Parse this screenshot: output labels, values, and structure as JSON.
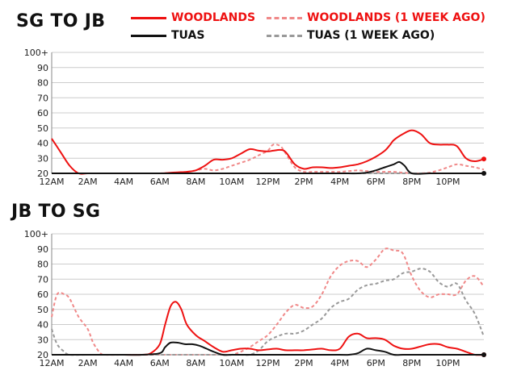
{
  "legend": {
    "woodlands": "WOODLANDS",
    "woodlands_prev": "WOODLANDS (1 WEEK AGO)",
    "tuas": "TUAS",
    "tuas_prev": "TUAS (1 WEEK AGO)"
  },
  "colors": {
    "woodlands": "#ee1111",
    "woodlands_prev": "#f08888",
    "tuas": "#111111",
    "tuas_prev": "#999999"
  },
  "chart_data": [
    {
      "type": "line",
      "title": "SG TO JB",
      "xlabel": "",
      "ylabel": "",
      "x_ticks": [
        "12AM",
        "2AM",
        "4AM",
        "6AM",
        "8AM",
        "10AM",
        "12PM",
        "2PM",
        "4PM",
        "6PM",
        "8PM",
        "10PM"
      ],
      "x_range": [
        0,
        24
      ],
      "y_ticks": [
        "20",
        "30",
        "40",
        "50",
        "60",
        "70",
        "80",
        "90",
        "100+"
      ],
      "ylim": [
        20,
        100
      ],
      "series": [
        {
          "name": "WOODLANDS",
          "style": "solid",
          "end_marker": true,
          "x": [
            0,
            0.5,
            1,
            1.5,
            2,
            3,
            4,
            5,
            6,
            6.5,
            7,
            7.5,
            8,
            8.5,
            9,
            9.5,
            10,
            10.5,
            11,
            11.5,
            12,
            12.3,
            12.7,
            13,
            13.5,
            14,
            14.5,
            15,
            15.5,
            16,
            16.5,
            17,
            17.5,
            18,
            18.5,
            18.8,
            19,
            19.5,
            20,
            20.5,
            21,
            21.5,
            22,
            22.5,
            23,
            23.5,
            24
          ],
          "y": [
            43,
            34,
            25,
            20,
            20,
            20,
            20,
            20,
            20,
            20.3,
            20.7,
            21,
            22,
            25,
            29,
            29,
            30,
            33,
            36,
            35,
            34.5,
            35,
            35.5,
            34,
            26,
            23,
            24,
            24,
            23.5,
            24,
            25,
            26,
            28,
            31,
            35,
            39,
            42,
            46,
            48.5,
            46,
            40,
            39,
            39,
            38,
            30,
            28,
            29.5
          ]
        },
        {
          "name": "WOODLANDS (1 WEEK AGO)",
          "style": "dashed",
          "end_marker": false,
          "x": [
            0,
            1,
            2,
            3,
            4,
            5,
            6,
            6.5,
            7,
            7.5,
            8,
            8.5,
            9,
            9.5,
            10,
            10.5,
            11,
            11.5,
            12,
            12.3,
            12.7,
            13,
            13.5,
            14,
            14.5,
            15,
            15.5,
            16,
            16.5,
            17,
            17.5,
            18,
            18.5,
            19,
            19.5,
            20,
            20.5,
            21,
            21.5,
            22,
            22.5,
            23,
            23.5,
            24
          ],
          "y": [
            20,
            20,
            20,
            20,
            20,
            20,
            20,
            20.2,
            20.5,
            21,
            22,
            23,
            22,
            23,
            25,
            27,
            29,
            32,
            35,
            39,
            38,
            33,
            24,
            21,
            21,
            21,
            21,
            21,
            21.5,
            22,
            21.5,
            21,
            21,
            21,
            20.5,
            20,
            20,
            20.5,
            22,
            24,
            26,
            25,
            24,
            22.5
          ]
        },
        {
          "name": "TUAS",
          "style": "solid",
          "end_marker": true,
          "x": [
            0,
            2,
            4,
            6,
            8,
            10,
            12,
            14,
            16,
            17,
            17.5,
            18,
            18.5,
            19,
            19.3,
            19.6,
            20,
            21,
            22,
            23,
            24
          ],
          "y": [
            20,
            20,
            20,
            20,
            20,
            20,
            20,
            20,
            20,
            20,
            20.5,
            22,
            24,
            26,
            27.5,
            25,
            20,
            20,
            20,
            20,
            20
          ]
        },
        {
          "name": "TUAS (1 WEEK AGO)",
          "style": "dashed",
          "end_marker": false,
          "x": [
            0,
            2,
            4,
            6,
            8,
            10,
            12,
            14,
            16,
            18,
            20,
            22,
            24
          ],
          "y": [
            20,
            20,
            20,
            20,
            20,
            20,
            20,
            20,
            20,
            20,
            20,
            20,
            20
          ]
        }
      ]
    },
    {
      "type": "line",
      "title": "JB TO SG",
      "xlabel": "",
      "ylabel": "",
      "x_ticks": [
        "12AM",
        "2AM",
        "4AM",
        "6AM",
        "8AM",
        "10AM",
        "12PM",
        "2PM",
        "4PM",
        "6PM",
        "8PM",
        "10PM"
      ],
      "x_range": [
        0,
        24
      ],
      "y_ticks": [
        "20",
        "30",
        "40",
        "50",
        "60",
        "70",
        "80",
        "90",
        "100+"
      ],
      "ylim": [
        20,
        100
      ],
      "series": [
        {
          "name": "WOODLANDS",
          "style": "solid",
          "end_marker": true,
          "x": [
            0,
            2,
            4,
            5,
            5.5,
            6,
            6.3,
            6.6,
            6.9,
            7.2,
            7.5,
            8,
            8.5,
            9,
            9.5,
            10,
            10.5,
            11,
            11.5,
            12,
            12.5,
            13,
            13.5,
            14,
            14.5,
            15,
            15.5,
            16,
            16.5,
            17,
            17.5,
            18,
            18.5,
            19,
            19.5,
            20,
            20.5,
            21,
            21.5,
            22,
            22.5,
            23,
            23.5,
            24
          ],
          "y": [
            20,
            20,
            20,
            20,
            21,
            27,
            40,
            52,
            55,
            50,
            40,
            33,
            29,
            25,
            22,
            23,
            24,
            24,
            23,
            23.5,
            24,
            23,
            23,
            23,
            23.5,
            24,
            23,
            24,
            32,
            34,
            31,
            31,
            30,
            26,
            24,
            24,
            25.5,
            27,
            27,
            25,
            24,
            22,
            20,
            20
          ]
        },
        {
          "name": "WOODLANDS (1 WEEK AGO)",
          "style": "dashed",
          "end_marker": false,
          "x": [
            0,
            0.3,
            0.7,
            1,
            1.5,
            2,
            2.3,
            2.7,
            3,
            4,
            5,
            6,
            7,
            7.5,
            8,
            8.5,
            9,
            9.5,
            10,
            10.5,
            11,
            11.5,
            12,
            12.5,
            13,
            13.5,
            14,
            14.5,
            15,
            15.5,
            16,
            16.5,
            17,
            17.5,
            18,
            18.5,
            19,
            19.5,
            20,
            20.5,
            21,
            21.5,
            22,
            22.5,
            23,
            23.5,
            24
          ],
          "y": [
            45,
            60,
            60,
            57,
            45,
            37,
            28,
            21,
            20,
            20,
            20,
            20,
            20,
            20,
            20,
            20,
            20,
            20,
            20,
            22,
            25,
            29,
            33,
            40,
            48,
            53,
            51,
            52,
            60,
            72,
            79,
            82,
            82,
            78,
            83,
            90,
            89,
            87,
            72,
            62,
            58,
            60,
            60,
            60,
            69,
            72,
            65
          ]
        },
        {
          "name": "TUAS",
          "style": "solid",
          "end_marker": true,
          "x": [
            0,
            2,
            4,
            5,
            6,
            6.3,
            6.6,
            7,
            7.4,
            7.8,
            8.2,
            8.6,
            9,
            9.5,
            10,
            12,
            14,
            16,
            16.5,
            17,
            17.5,
            18,
            18.5,
            19,
            19.5,
            20,
            21,
            22,
            23,
            24
          ],
          "y": [
            20,
            20,
            20,
            20,
            21,
            25,
            28,
            28,
            27,
            27,
            26,
            24,
            22,
            20,
            20,
            20,
            20,
            20,
            20,
            21,
            24,
            23,
            22,
            20,
            20,
            20,
            20,
            20,
            20,
            20
          ]
        },
        {
          "name": "TUAS (1 WEEK AGO)",
          "style": "dashed",
          "end_marker": false,
          "x": [
            0,
            0.3,
            0.7,
            1,
            2,
            4,
            6,
            8,
            9,
            9.5,
            10,
            10.5,
            11,
            11.5,
            12,
            12.5,
            13,
            13.5,
            14,
            14.5,
            15,
            15.5,
            16,
            16.5,
            17,
            17.5,
            18,
            18.5,
            19,
            19.5,
            20,
            20.5,
            21,
            21.5,
            22,
            22.5,
            23,
            23.5,
            24
          ],
          "y": [
            37,
            27,
            22,
            20,
            20,
            20,
            20,
            20,
            20,
            20,
            20,
            20,
            20,
            23,
            29,
            32,
            34,
            34,
            36,
            40,
            44,
            51,
            55,
            57,
            63,
            66,
            67,
            69,
            70,
            74,
            75,
            77,
            75,
            68,
            65,
            67,
            56,
            47,
            32
          ]
        }
      ]
    }
  ]
}
